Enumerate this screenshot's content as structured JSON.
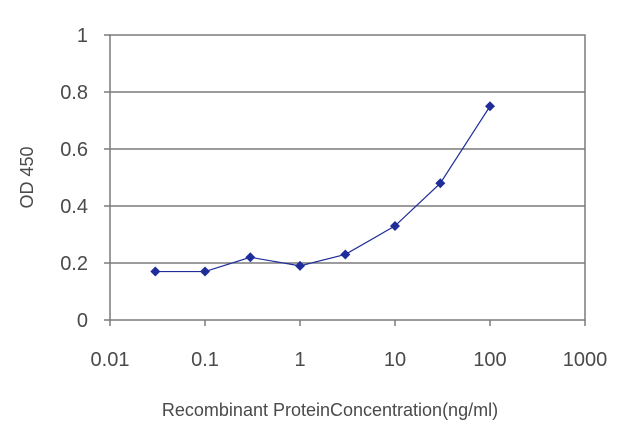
{
  "chart_data": {
    "type": "line",
    "title": "",
    "xlabel": "Recombinant ProteinConcentration(ng/ml)",
    "ylabel": "OD 450",
    "x_scale": "log",
    "xlim": [
      0.01,
      1000
    ],
    "ylim": [
      0,
      1
    ],
    "x_ticks": [
      "0.01",
      "0.1",
      "1",
      "10",
      "100",
      "1000"
    ],
    "y_ticks": [
      "0",
      "0.2",
      "0.4",
      "0.6",
      "0.8",
      "1"
    ],
    "grid": "horizontal",
    "series": [
      {
        "color": "#1f2d9a",
        "marker": "diamond",
        "x": [
          0.03,
          0.1,
          0.3,
          1,
          3,
          10,
          30,
          100
        ],
        "y": [
          0.17,
          0.17,
          0.22,
          0.19,
          0.23,
          0.33,
          0.48,
          0.75
        ]
      }
    ]
  }
}
